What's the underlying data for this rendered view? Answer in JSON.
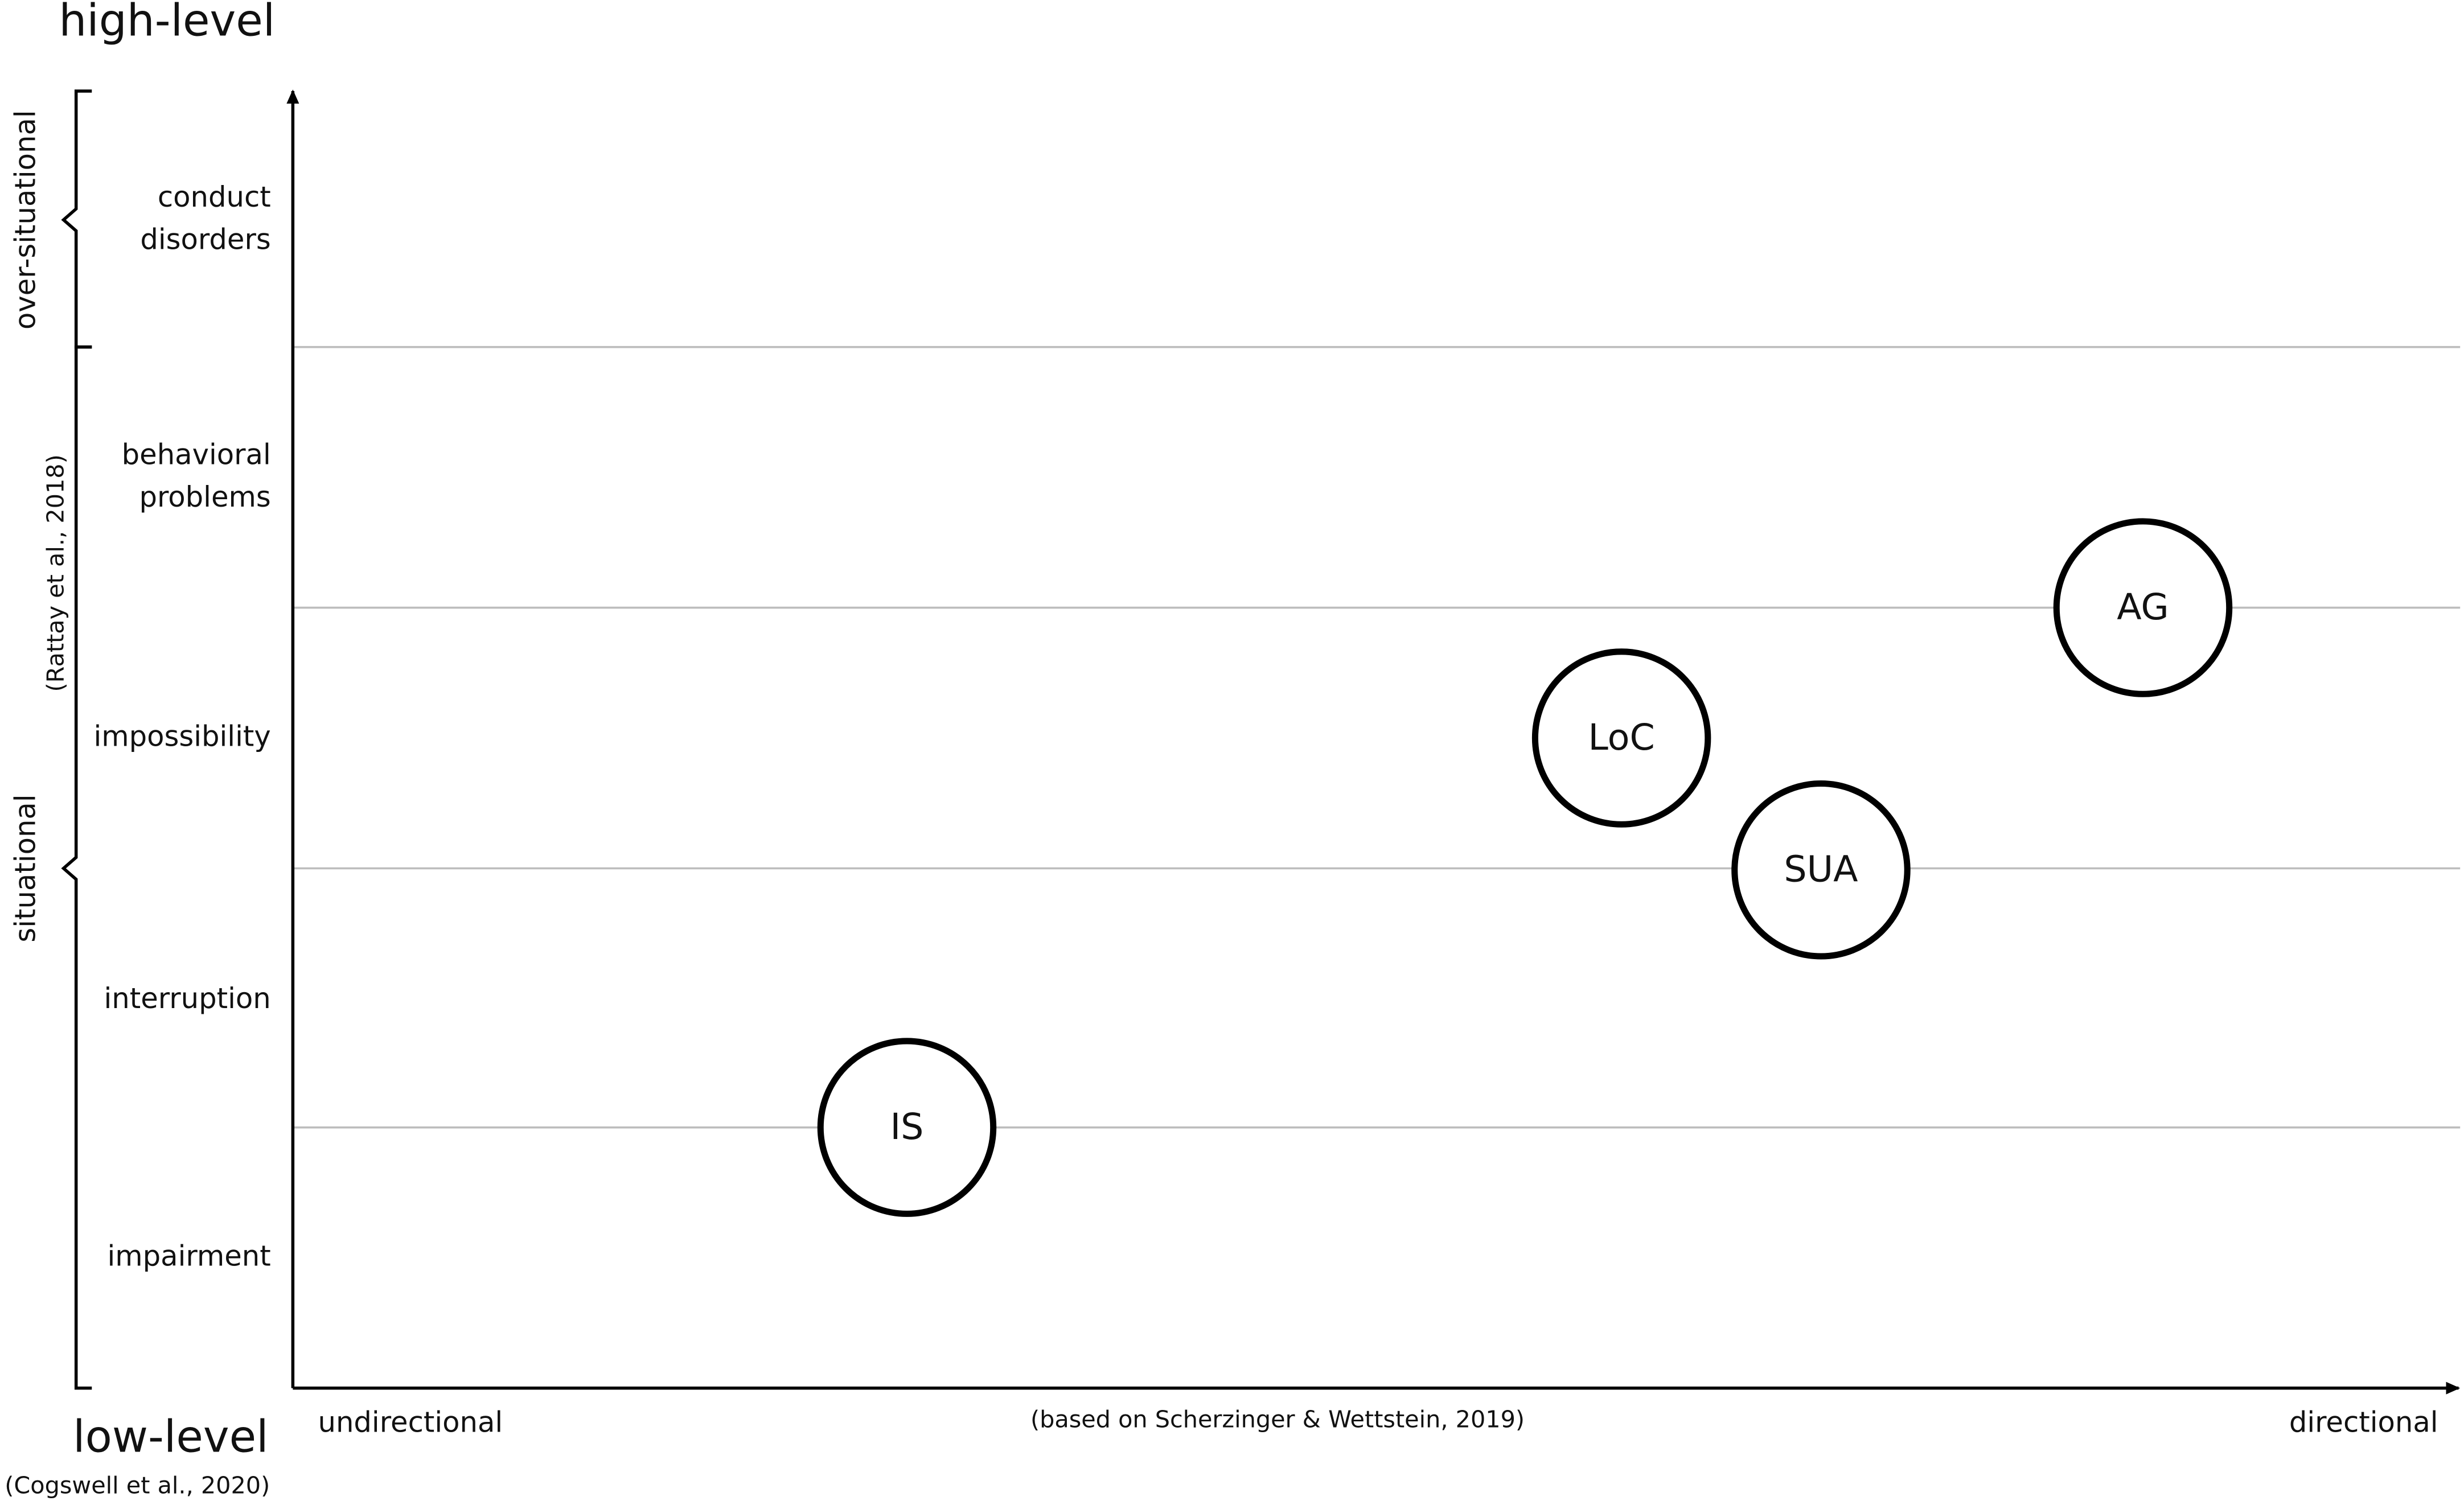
{
  "header": {
    "top_label": "high-level",
    "bottom_label": "low-level",
    "bottom_source": "(Cogswell et al., 2020)"
  },
  "y_axis": {
    "groups": [
      "over-situational",
      "situational"
    ],
    "source": "(Rattay et al., 2018)",
    "levels": [
      "conduct disorders",
      "behavioral problems",
      "impossibility",
      "interruption",
      "impairment"
    ]
  },
  "x_axis": {
    "left": "undirectional",
    "right": "directional",
    "source": "(based on Scherzinger & Wettstein, 2019)"
  },
  "nodes": [
    {
      "label": "IS"
    },
    {
      "label": "LoC"
    },
    {
      "label": "SUA"
    },
    {
      "label": "AG"
    }
  ]
}
